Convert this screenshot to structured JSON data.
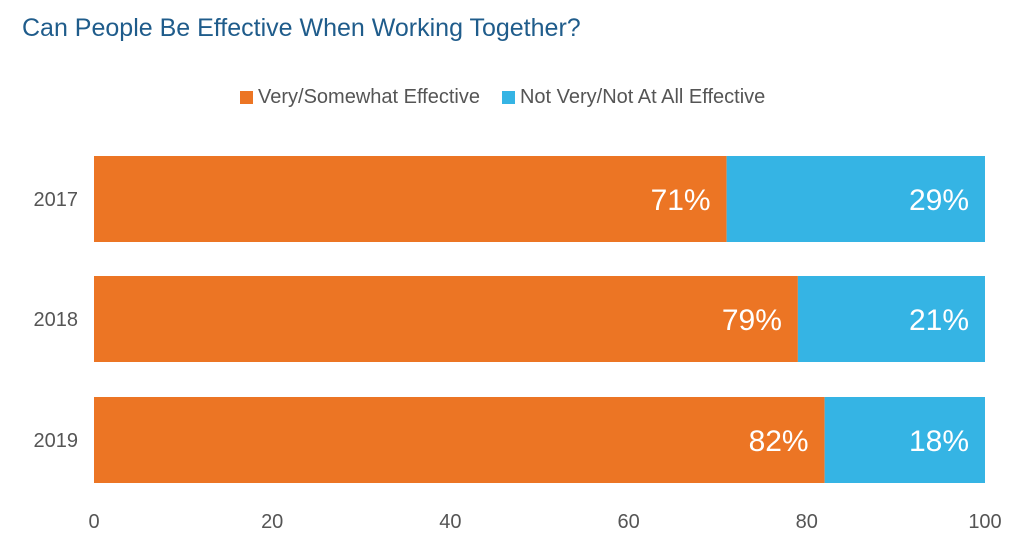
{
  "chart_data": {
    "type": "bar",
    "orientation": "horizontal",
    "stacked": true,
    "title": "Can People Be Effective When Working Together?",
    "categories": [
      "2017",
      "2018",
      "2019"
    ],
    "series": [
      {
        "name": "Very/Somewhat Effective",
        "values": [
          71,
          79,
          82
        ],
        "labels": [
          "71%",
          "79%",
          "82%"
        ],
        "color": "#ec7524"
      },
      {
        "name": "Not Very/Not At All Effective",
        "values": [
          29,
          21,
          18
        ],
        "labels": [
          "29%",
          "21%",
          "18%"
        ],
        "color": "#35b4e4"
      }
    ],
    "xticks": [
      "0",
      "20",
      "40",
      "60",
      "80",
      "100"
    ],
    "xlim": [
      0,
      100
    ],
    "grid": false,
    "legend": "top"
  }
}
